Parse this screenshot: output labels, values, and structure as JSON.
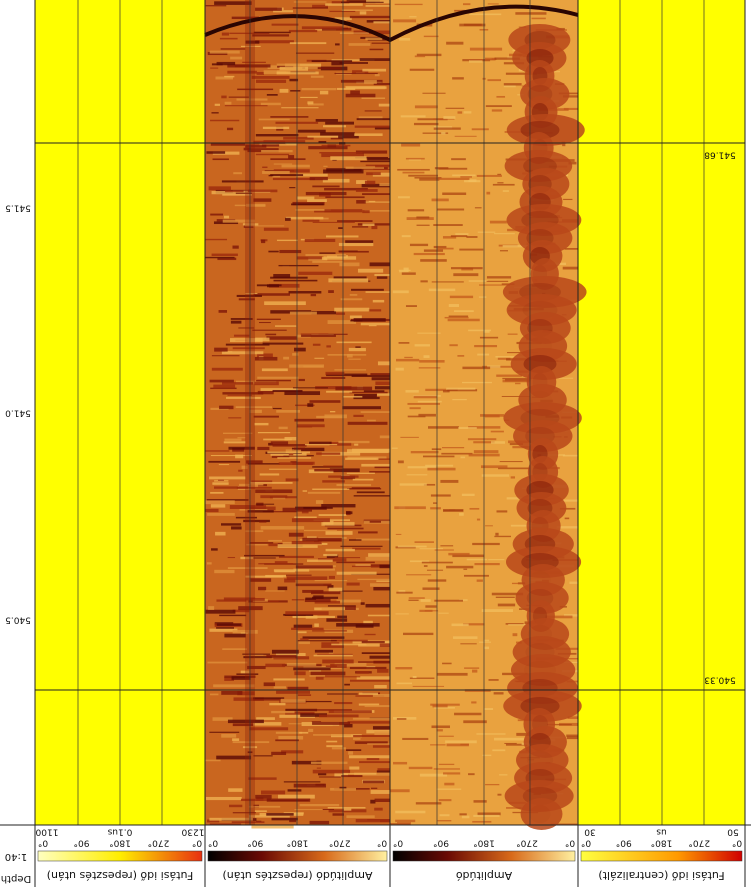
{
  "depth_track": {
    "labels": [
      "541.5",
      "541.0",
      "540.5"
    ],
    "scale": "1:40",
    "title": "Depth"
  },
  "markers": [
    "541.68",
    "540.33"
  ],
  "tracks": [
    {
      "title": "Futási idő (repesztés után)",
      "scale": [
        "1100",
        "0.1us",
        "1230"
      ],
      "degrees": [
        "0°",
        "90°",
        "180°",
        "270°",
        "0°"
      ]
    },
    {
      "title": "Amplitúdó (repesztés után)",
      "degrees": [
        "0°",
        "90°",
        "180°",
        "270°",
        "0°"
      ]
    },
    {
      "title": "Amplitúdó",
      "degrees": [
        "0°",
        "90°",
        "180°",
        "270°",
        "0°"
      ]
    },
    {
      "title": "Futási idő (centralizált)",
      "scale": [
        "30",
        "us",
        "50"
      ],
      "degrees": [
        "0°",
        "90°",
        "180°",
        "270°",
        "0°"
      ]
    }
  ]
}
